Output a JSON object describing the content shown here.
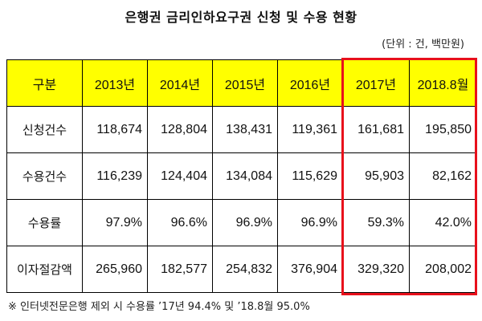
{
  "title": "은행권 금리인하요구권 신청 및 수용 현황",
  "unit_note": "(단위 : 건, 백만원)",
  "colors": {
    "header_bg": "#ffff00",
    "highlight_border": "#e8101b"
  },
  "table": {
    "headers": [
      "구분",
      "2013년",
      "2014년",
      "2015년",
      "2016년",
      "2017년",
      "2018.8월"
    ],
    "rows": [
      {
        "label": "신청건수",
        "values": [
          "118,674",
          "128,804",
          "138,431",
          "119,361",
          "161,681",
          "195,850"
        ]
      },
      {
        "label": "수용건수",
        "values": [
          "116,239",
          "124,404",
          "134,084",
          "115,629",
          "95,903",
          "82,162"
        ]
      },
      {
        "label": "수용률",
        "values": [
          "97.9%",
          "96.6%",
          "96.9%",
          "96.9%",
          "59.3%",
          "42.0%"
        ]
      },
      {
        "label": "이자절감액",
        "values": [
          "265,960",
          "182,577",
          "254,832",
          "376,904",
          "329,320",
          "208,002"
        ]
      }
    ]
  },
  "footnote": "※ 인터넷전문은행 제외 시 수용률 ’17년 94.4% 및 ’18.8월 95.0%"
}
